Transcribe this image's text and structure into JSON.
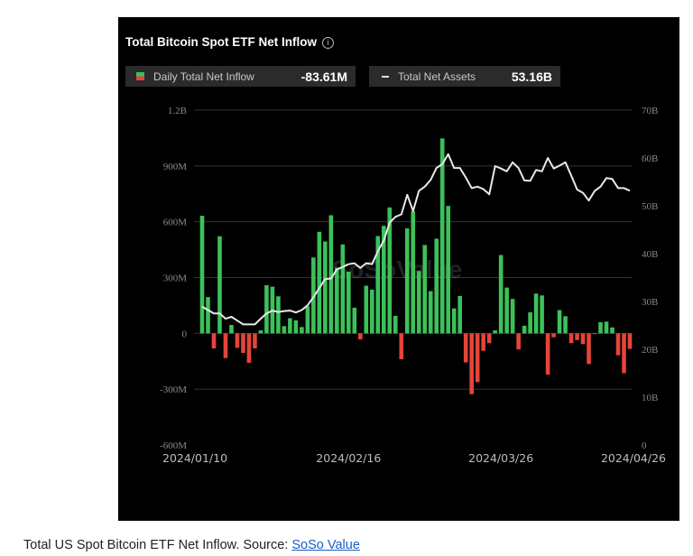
{
  "chart_data": {
    "type": "bar",
    "title": "Total Bitcoin Spot ETF Net Inflow",
    "legend": [
      {
        "name": "Daily Total Net Inflow",
        "latest": "-83.61M"
      },
      {
        "name": "Total Net Assets",
        "latest": "53.16B"
      }
    ],
    "x_tick_labels": [
      "2024/01/10",
      "2024/02/16",
      "2024/03/26",
      "2024/04/26"
    ],
    "y_left": {
      "ticks": [
        "1.2B",
        "900M",
        "600M",
        "300M",
        "0",
        "-300M",
        "-600M"
      ],
      "range_millions": [
        -600,
        1200
      ]
    },
    "y_right": {
      "ticks": [
        "70B",
        "60B",
        "50B",
        "40B",
        "30B",
        "20B",
        "10B",
        "0"
      ],
      "range_billions": [
        0,
        70
      ]
    },
    "grid": true,
    "series": [
      {
        "name": "Daily Total Net Inflow",
        "type": "bar",
        "unit": "M USD",
        "values": [
          632,
          195,
          -81,
          522,
          -133,
          45,
          -78,
          -105,
          -159,
          -81,
          16,
          259,
          251,
          199,
          39,
          81,
          70,
          34,
          146,
          408,
          546,
          494,
          635,
          353,
          478,
          332,
          138,
          -32,
          256,
          235,
          523,
          578,
          677,
          94,
          -139,
          564,
          656,
          335,
          475,
          227,
          509,
          1048,
          685,
          134,
          201,
          -156,
          -327,
          -262,
          -94,
          -53,
          16,
          421,
          246,
          185,
          -86,
          41,
          113,
          214,
          204,
          -222,
          -21,
          125,
          92,
          -53,
          -36,
          -58,
          -165,
          0,
          60,
          63,
          32,
          -118,
          -214,
          -83.61
        ]
      },
      {
        "name": "Total Net Assets",
        "type": "line",
        "unit": "B USD",
        "values": [
          28.9,
          28.2,
          27.5,
          27.5,
          26.4,
          26.8,
          26.0,
          25.2,
          25.2,
          25.2,
          26.4,
          27.5,
          28.1,
          27.8,
          28.0,
          28.1,
          27.7,
          28.2,
          29.2,
          30.9,
          32.8,
          34.7,
          34.8,
          36.7,
          37.2,
          37.8,
          38.0,
          37.0,
          38.0,
          37.8,
          40.5,
          42.7,
          46.5,
          47.7,
          48.2,
          52.3,
          48.9,
          53.1,
          54.0,
          55.4,
          57.9,
          58.7,
          60.8,
          57.9,
          57.9,
          55.9,
          53.7,
          54.0,
          53.5,
          52.4,
          58.3,
          57.8,
          57.2,
          59.1,
          57.9,
          55.3,
          55.2,
          57.5,
          57.2,
          60.0,
          57.8,
          58.4,
          59.1,
          56.3,
          53.4,
          52.7,
          51.1,
          53.1,
          54.0,
          55.8,
          55.6,
          53.7,
          53.7,
          53.16
        ]
      }
    ],
    "colors": {
      "positive": "#3cc15a",
      "negative": "#e5443a",
      "line": "#e8e8e8",
      "background": "#000000",
      "grid": "#333333"
    },
    "watermark": "SoSoValue"
  },
  "caption": {
    "text": "Total US Spot Bitcoin ETF Net Inflow. Source: ",
    "link": "SoSo Value"
  }
}
